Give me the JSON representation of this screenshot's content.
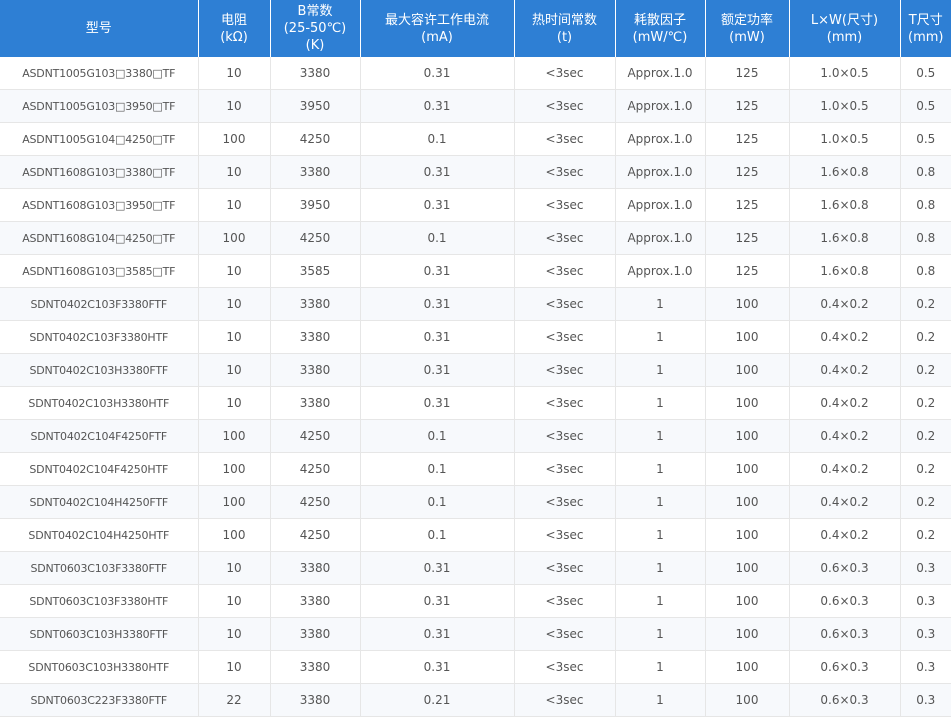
{
  "colors": {
    "header_bg": "#2e7fd4",
    "header_text": "#ffffff",
    "cell_text": "#555555",
    "grid": "#e6e6e6"
  },
  "columns": [
    "型号",
    "电阻\n(kΩ)",
    "B常数\n(25-50℃)\n(K)",
    "最大容许工作电流\n(mA)",
    "热时间常数\n(t)",
    "耗散因子\n(mW/℃)",
    "额定功率\n(mW)",
    "L×W(尺寸)\n(mm)",
    "T尺寸\n(mm)"
  ],
  "rows": [
    [
      "ASDNT1005G103□3380□TF",
      "10",
      "3380",
      "0.31",
      "<3sec",
      "Approx.1.0",
      "125",
      "1.0×0.5",
      "0.5"
    ],
    [
      "ASDNT1005G103□3950□TF",
      "10",
      "3950",
      "0.31",
      "<3sec",
      "Approx.1.0",
      "125",
      "1.0×0.5",
      "0.5"
    ],
    [
      "ASDNT1005G104□4250□TF",
      "100",
      "4250",
      "0.1",
      "<3sec",
      "Approx.1.0",
      "125",
      "1.0×0.5",
      "0.5"
    ],
    [
      "ASDNT1608G103□3380□TF",
      "10",
      "3380",
      "0.31",
      "<3sec",
      "Approx.1.0",
      "125",
      "1.6×0.8",
      "0.8"
    ],
    [
      "ASDNT1608G103□3950□TF",
      "10",
      "3950",
      "0.31",
      "<3sec",
      "Approx.1.0",
      "125",
      "1.6×0.8",
      "0.8"
    ],
    [
      "ASDNT1608G104□4250□TF",
      "100",
      "4250",
      "0.1",
      "<3sec",
      "Approx.1.0",
      "125",
      "1.6×0.8",
      "0.8"
    ],
    [
      "ASDNT1608G103□3585□TF",
      "10",
      "3585",
      "0.31",
      "<3sec",
      "Approx.1.0",
      "125",
      "1.6×0.8",
      "0.8"
    ],
    [
      "SDNT0402C103F3380FTF",
      "10",
      "3380",
      "0.31",
      "<3sec",
      "1",
      "100",
      "0.4×0.2",
      "0.2"
    ],
    [
      "SDNT0402C103F3380HTF",
      "10",
      "3380",
      "0.31",
      "<3sec",
      "1",
      "100",
      "0.4×0.2",
      "0.2"
    ],
    [
      "SDNT0402C103H3380FTF",
      "10",
      "3380",
      "0.31",
      "<3sec",
      "1",
      "100",
      "0.4×0.2",
      "0.2"
    ],
    [
      "SDNT0402C103H3380HTF",
      "10",
      "3380",
      "0.31",
      "<3sec",
      "1",
      "100",
      "0.4×0.2",
      "0.2"
    ],
    [
      "SDNT0402C104F4250FTF",
      "100",
      "4250",
      "0.1",
      "<3sec",
      "1",
      "100",
      "0.4×0.2",
      "0.2"
    ],
    [
      "SDNT0402C104F4250HTF",
      "100",
      "4250",
      "0.1",
      "<3sec",
      "1",
      "100",
      "0.4×0.2",
      "0.2"
    ],
    [
      "SDNT0402C104H4250FTF",
      "100",
      "4250",
      "0.1",
      "<3sec",
      "1",
      "100",
      "0.4×0.2",
      "0.2"
    ],
    [
      "SDNT0402C104H4250HTF",
      "100",
      "4250",
      "0.1",
      "<3sec",
      "1",
      "100",
      "0.4×0.2",
      "0.2"
    ],
    [
      "SDNT0603C103F3380FTF",
      "10",
      "3380",
      "0.31",
      "<3sec",
      "1",
      "100",
      "0.6×0.3",
      "0.3"
    ],
    [
      "SDNT0603C103F3380HTF",
      "10",
      "3380",
      "0.31",
      "<3sec",
      "1",
      "100",
      "0.6×0.3",
      "0.3"
    ],
    [
      "SDNT0603C103H3380FTF",
      "10",
      "3380",
      "0.31",
      "<3sec",
      "1",
      "100",
      "0.6×0.3",
      "0.3"
    ],
    [
      "SDNT0603C103H3380HTF",
      "10",
      "3380",
      "0.31",
      "<3sec",
      "1",
      "100",
      "0.6×0.3",
      "0.3"
    ],
    [
      "SDNT0603C223F3380FTF",
      "22",
      "3380",
      "0.21",
      "<3sec",
      "1",
      "100",
      "0.6×0.3",
      "0.3"
    ]
  ]
}
